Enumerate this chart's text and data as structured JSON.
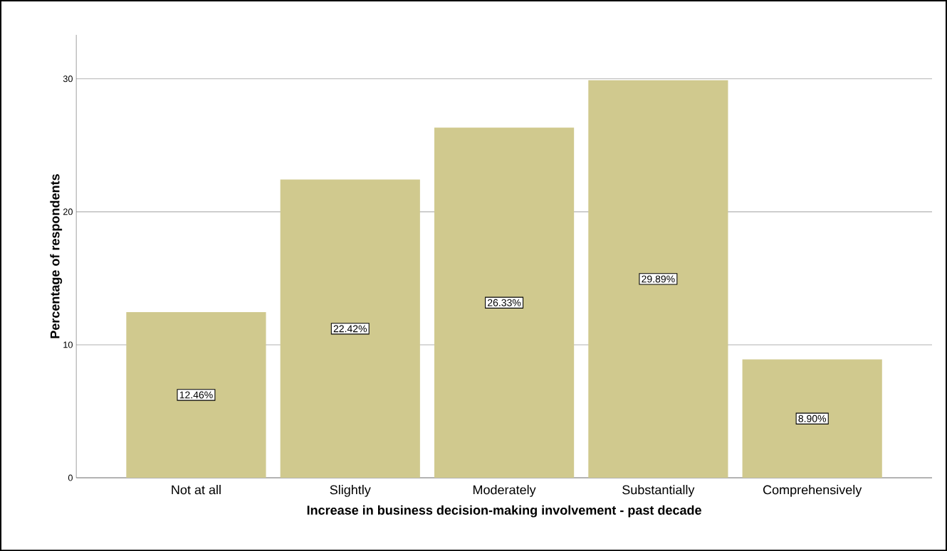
{
  "chart_data": {
    "type": "bar",
    "xlabel": "Increase in business decision-making involvement - past decade",
    "ylabel": "Percentage of respondents",
    "categories": [
      "Not at all",
      "Slightly",
      "Moderately",
      "Substantially",
      "Comprehensively"
    ],
    "values": [
      12.46,
      22.42,
      26.33,
      29.89,
      8.9
    ],
    "value_labels": [
      "12.46%",
      "22.42%",
      "26.33%",
      "29.89%",
      "8.90%"
    ],
    "color": "#d0c98e",
    "ylim": [
      0,
      33.3
    ],
    "yticks": [
      0,
      10,
      20,
      30
    ],
    "grid": "y"
  }
}
